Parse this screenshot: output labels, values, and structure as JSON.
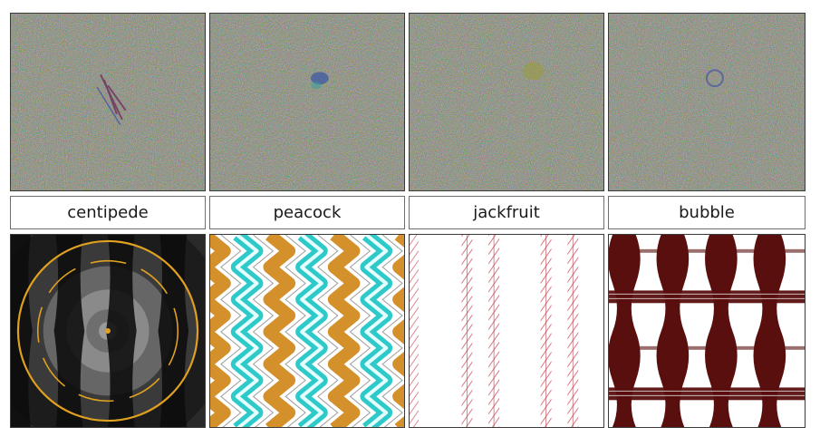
{
  "labels": [
    "centipede",
    "peacock",
    "jackfruit",
    "bubble"
  ],
  "colors": {
    "noise_base": "#7d7f6e",
    "centipede_ring": "#e0a020",
    "peacock_teal": "#2ec9c9",
    "peacock_orange": "#d4902a",
    "jackfruit_red": "#d0606a",
    "bubble_maroon": "#5a0f0f"
  }
}
